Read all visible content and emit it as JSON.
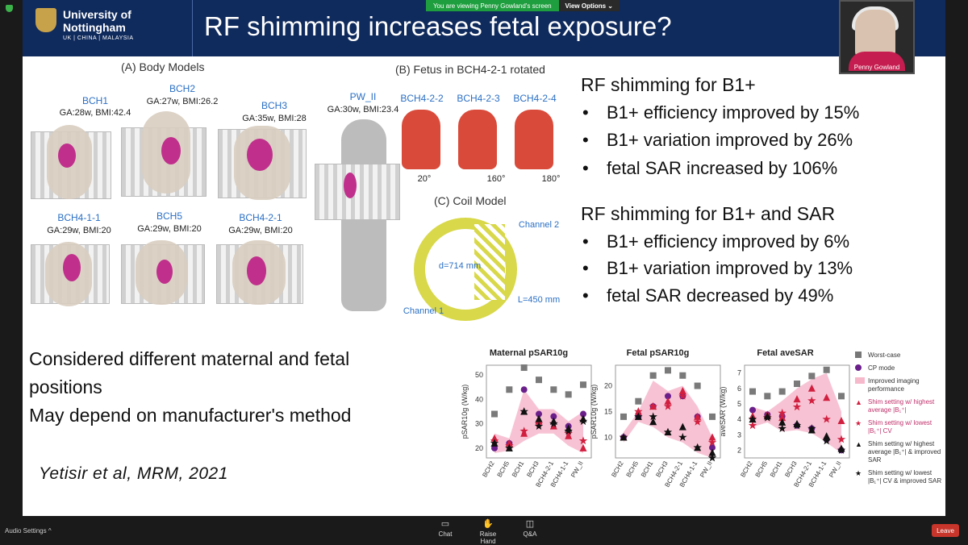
{
  "window": {
    "share_banner": "You are viewing Penny Gowland's screen",
    "view_options": "View Options ⌄"
  },
  "slide": {
    "logo_line1": "University of",
    "logo_line2": "Nottingham",
    "logo_sub": "UK | CHINA | MALAYSIA",
    "title": "RF shimming increases fetal exposure?",
    "panel_a": "(A) Body Models",
    "panel_b": "(B) Fetus in BCH4-2-1 rotated",
    "panel_c": "(C) Coil Model",
    "models": [
      {
        "name": "BCH1",
        "meta": "GA:28w, BMI:42.4"
      },
      {
        "name": "BCH2",
        "meta": "GA:27w, BMI:26.2"
      },
      {
        "name": "BCH3",
        "meta": "GA:35w, BMI:28"
      },
      {
        "name": "PW_II",
        "meta": "GA:30w, BMI:23.4"
      },
      {
        "name": "BCH4-1-1",
        "meta": "GA:29w, BMI:20"
      },
      {
        "name": "BCH5",
        "meta": "GA:29w, BMI:20"
      },
      {
        "name": "BCH4-2-1",
        "meta": "GA:29w, BMI:20"
      }
    ],
    "rotations": [
      {
        "name": "BCH4-2-2",
        "angle": "20°"
      },
      {
        "name": "BCH4-2-3",
        "angle": "160°"
      },
      {
        "name": "BCH4-2-4",
        "angle": "180°"
      }
    ],
    "coil": {
      "channel1": "Channel 1",
      "channel2": "Channel 2",
      "diameter": "d=714 mm",
      "length": "L=450 mm"
    },
    "group1_heading": "RF shimming for B1+",
    "group1": [
      "B1+ efficiency improved by 15%",
      "B1+ variation improved by 26%",
      "fetal SAR increased by 106%"
    ],
    "group2_heading": "RF shimming for B1+ and SAR",
    "group2": [
      "B1+ efficiency improved by 6%",
      "B1+ variation improved by 13%",
      "fetal SAR decreased by 49%"
    ],
    "note_line1": "Considered different maternal and fetal",
    "note_line2": "positions",
    "note_line3": "May depend on manufacturer's method",
    "citation": "Yetisir et al, MRM, 2021",
    "legend": [
      "Worst-case",
      "CP mode",
      "Improved imaging performance",
      "Shim setting w/ highest average |B₁⁺|",
      "Shim setting w/ lowest |B₁⁺| CV",
      "Shim setting w/ highest average |B₁⁺| & improved SAR",
      "Shim setting w/ lowest |B₁⁺| CV & improved SAR"
    ]
  },
  "chart_data": [
    {
      "type": "scatter",
      "title": "Maternal pSAR10g",
      "ylabel": "pSAR10g (W/kg)",
      "categories": [
        "BCH2",
        "BCH5",
        "BCH1",
        "BCH3",
        "BCH4-2-1",
        "BCH4-1-1",
        "PW_II"
      ],
      "ylim": [
        16,
        54
      ],
      "yticks": [
        20,
        30,
        40,
        50
      ],
      "series": [
        {
          "name": "Worst-case",
          "values": [
            34,
            44,
            53,
            48,
            44,
            42,
            46
          ]
        },
        {
          "name": "CP mode",
          "values": [
            20,
            22,
            44,
            34,
            33,
            29,
            34
          ]
        },
        {
          "name": "Shim setting w/ highest average |B₁⁺|",
          "values": [
            24,
            22,
            26,
            31,
            29,
            25,
            20
          ]
        },
        {
          "name": "Shim setting w/ lowest |B₁⁺| CV",
          "values": [
            23,
            21,
            27,
            30,
            30,
            26,
            23
          ]
        },
        {
          "name": "Shim setting w/ highest average |B₁⁺| & improved SAR",
          "values": [
            22,
            20,
            35,
            32,
            31,
            28,
            32
          ]
        },
        {
          "name": "Shim setting w/ lowest |B₁⁺| CV & improved SAR",
          "values": [
            22,
            20,
            35,
            29,
            30,
            27,
            31
          ]
        }
      ],
      "band": {
        "low": [
          18,
          19,
          23,
          26,
          26,
          21,
          18
        ],
        "high": [
          26,
          24,
          44,
          36,
          36,
          31,
          35
        ]
      }
    },
    {
      "type": "scatter",
      "title": "Fetal pSAR10g",
      "ylabel": "pSAR10g (W/kg)",
      "categories": [
        "BCH2",
        "BCH5",
        "BCH1",
        "BCH3",
        "BCH4-2-1",
        "BCH4-1-1",
        "PW_II"
      ],
      "ylim": [
        6,
        24
      ],
      "yticks": [
        10,
        15,
        20
      ],
      "series": [
        {
          "name": "Worst-case",
          "values": [
            14,
            17,
            22,
            23,
            22,
            20,
            14
          ]
        },
        {
          "name": "CP mode",
          "values": [
            10,
            14,
            16,
            18,
            18,
            14,
            8
          ]
        },
        {
          "name": "Shim setting w/ highest average |B₁⁺|",
          "values": [
            10,
            15,
            16,
            17,
            19,
            14,
            10
          ]
        },
        {
          "name": "Shim setting w/ lowest |B₁⁺| CV",
          "values": [
            10,
            15,
            16,
            16,
            18,
            13,
            9
          ]
        },
        {
          "name": "Shim setting w/ highest average |B₁⁺| & improved SAR",
          "values": [
            10,
            14,
            13,
            11,
            12,
            8,
            7
          ]
        },
        {
          "name": "Shim setting w/ lowest |B₁⁺| CV & improved SAR",
          "values": [
            10,
            14,
            14,
            11,
            10,
            8,
            6
          ]
        }
      ],
      "band": {
        "low": [
          9,
          13,
          12,
          10,
          9,
          7,
          6
        ],
        "high": [
          11,
          15,
          21,
          19,
          20,
          16,
          10
        ]
      }
    },
    {
      "type": "scatter",
      "title": "Fetal aveSAR",
      "ylabel": "aveSAR (W/kg)",
      "categories": [
        "BCH2",
        "BCH5",
        "BCH1",
        "BCH3",
        "BCH4-2-1",
        "BCH4-1-1",
        "PW_II"
      ],
      "ylim": [
        1.5,
        7.5
      ],
      "yticks": [
        2,
        3,
        4,
        5,
        6,
        7
      ],
      "series": [
        {
          "name": "Worst-case",
          "values": [
            5.8,
            5.5,
            5.8,
            6.3,
            6.8,
            7.2,
            5.5
          ]
        },
        {
          "name": "CP mode",
          "values": [
            4.6,
            4.3,
            4.2,
            3.6,
            3.4,
            2.7,
            2.0
          ]
        },
        {
          "name": "Shim setting w/ highest average |B₁⁺|",
          "values": [
            4.2,
            4.3,
            4.1,
            5.3,
            6.0,
            5.4,
            3.9
          ]
        },
        {
          "name": "Shim setting w/ lowest |B₁⁺| CV",
          "values": [
            3.6,
            4.1,
            4.4,
            4.8,
            5.2,
            4.0,
            2.7
          ]
        },
        {
          "name": "Shim setting w/ highest average |B₁⁺| & improved SAR",
          "values": [
            4.0,
            4.2,
            3.8,
            3.7,
            3.3,
            2.9,
            2.1
          ]
        },
        {
          "name": "Shim setting w/ lowest |B₁⁺| CV & improved SAR",
          "values": [
            4.0,
            4.1,
            3.4,
            3.6,
            3.4,
            2.6,
            2.0
          ]
        }
      ],
      "band": {
        "low": [
          3.5,
          3.8,
          3.2,
          3.3,
          3.1,
          2.5,
          1.8
        ],
        "high": [
          4.8,
          4.5,
          5.2,
          6.0,
          6.6,
          7.0,
          4.5
        ]
      }
    }
  ],
  "participant": {
    "name": "Penny Gowland"
  },
  "toolbar": {
    "audio": "Audio Settings ^",
    "chat": "Chat",
    "raise_hand": "Raise Hand",
    "qa": "Q&A",
    "leave": "Leave"
  }
}
